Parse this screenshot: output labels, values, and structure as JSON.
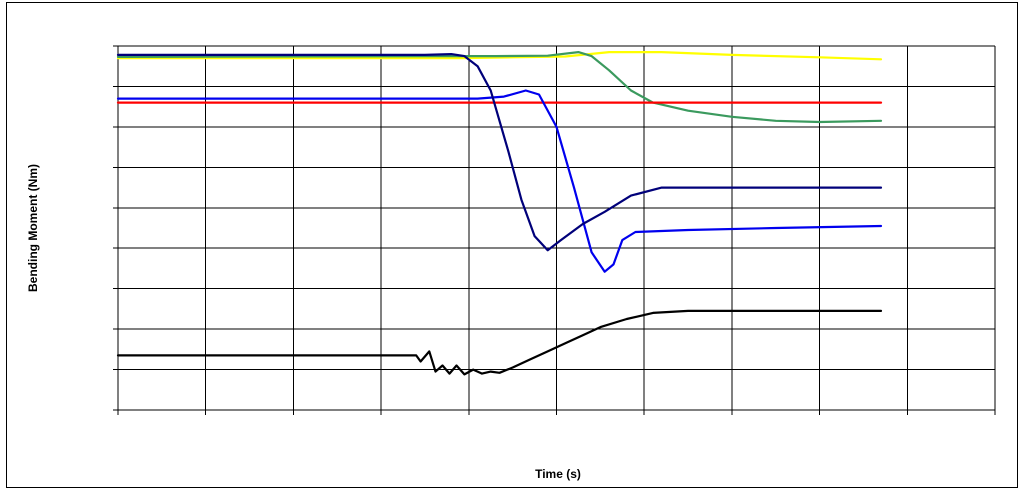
{
  "chart_data": {
    "type": "line",
    "title": "",
    "xlabel": "Time (s)",
    "ylabel": "Bending Moment (Nm)",
    "xlim": [
      0,
      10
    ],
    "ylim": [
      0,
      9
    ],
    "x_tick_count": 10,
    "y_tick_count": 9,
    "grid": true,
    "legend": "none",
    "series": [
      {
        "color": "#ffff00",
        "points": [
          [
            0,
            8.7
          ],
          [
            3.9,
            8.7
          ],
          [
            4.5,
            8.72
          ],
          [
            5.1,
            8.74
          ],
          [
            5.6,
            8.85
          ],
          [
            6.2,
            8.85
          ],
          [
            7,
            8.78
          ],
          [
            8,
            8.72
          ],
          [
            8.7,
            8.67
          ]
        ]
      },
      {
        "color": "#3b9a5e",
        "points": [
          [
            0,
            8.73
          ],
          [
            3.6,
            8.75
          ],
          [
            4.3,
            8.75
          ],
          [
            4.9,
            8.76
          ],
          [
            5.25,
            8.85
          ],
          [
            5.4,
            8.75
          ],
          [
            5.6,
            8.4
          ],
          [
            5.85,
            7.9
          ],
          [
            6.1,
            7.6
          ],
          [
            6.5,
            7.4
          ],
          [
            7,
            7.25
          ],
          [
            7.5,
            7.15
          ],
          [
            8,
            7.12
          ],
          [
            8.7,
            7.15
          ]
        ]
      },
      {
        "color": "#ff0000",
        "points": [
          [
            0,
            7.6
          ],
          [
            8.7,
            7.6
          ]
        ]
      },
      {
        "color": "#0000ee",
        "points": [
          [
            0,
            7.7
          ],
          [
            4.1,
            7.7
          ],
          [
            4.4,
            7.75
          ],
          [
            4.65,
            7.9
          ],
          [
            4.8,
            7.8
          ],
          [
            5,
            7
          ],
          [
            5.2,
            5.5
          ],
          [
            5.4,
            3.9
          ],
          [
            5.55,
            3.42
          ],
          [
            5.65,
            3.6
          ],
          [
            5.75,
            4.2
          ],
          [
            5.9,
            4.4
          ],
          [
            6.5,
            4.45
          ],
          [
            7.5,
            4.5
          ],
          [
            8.7,
            4.55
          ]
        ]
      },
      {
        "color": "#00007a",
        "points": [
          [
            0,
            8.78
          ],
          [
            3.5,
            8.78
          ],
          [
            3.8,
            8.8
          ],
          [
            3.95,
            8.75
          ],
          [
            4.1,
            8.5
          ],
          [
            4.25,
            7.9
          ],
          [
            4.45,
            6.4
          ],
          [
            4.6,
            5.2
          ],
          [
            4.75,
            4.3
          ],
          [
            4.9,
            3.95
          ],
          [
            5.05,
            4.2
          ],
          [
            5.3,
            4.6
          ],
          [
            5.55,
            4.9
          ],
          [
            5.85,
            5.3
          ],
          [
            6.2,
            5.5
          ],
          [
            7,
            5.5
          ],
          [
            8,
            5.5
          ],
          [
            8.7,
            5.5
          ]
        ]
      },
      {
        "color": "#000000",
        "points": [
          [
            0,
            1.35
          ],
          [
            3.4,
            1.35
          ],
          [
            3.45,
            1.2
          ],
          [
            3.55,
            1.45
          ],
          [
            3.62,
            0.95
          ],
          [
            3.7,
            1.1
          ],
          [
            3.78,
            0.9
          ],
          [
            3.86,
            1.1
          ],
          [
            3.95,
            0.88
          ],
          [
            4.05,
            1
          ],
          [
            4.15,
            0.9
          ],
          [
            4.25,
            0.95
          ],
          [
            4.35,
            0.92
          ],
          [
            4.5,
            1.05
          ],
          [
            4.7,
            1.25
          ],
          [
            4.9,
            1.45
          ],
          [
            5.1,
            1.65
          ],
          [
            5.3,
            1.85
          ],
          [
            5.5,
            2.05
          ],
          [
            5.8,
            2.25
          ],
          [
            6.1,
            2.4
          ],
          [
            6.5,
            2.45
          ],
          [
            7,
            2.45
          ],
          [
            8,
            2.45
          ],
          [
            8.7,
            2.45
          ]
        ]
      }
    ]
  }
}
